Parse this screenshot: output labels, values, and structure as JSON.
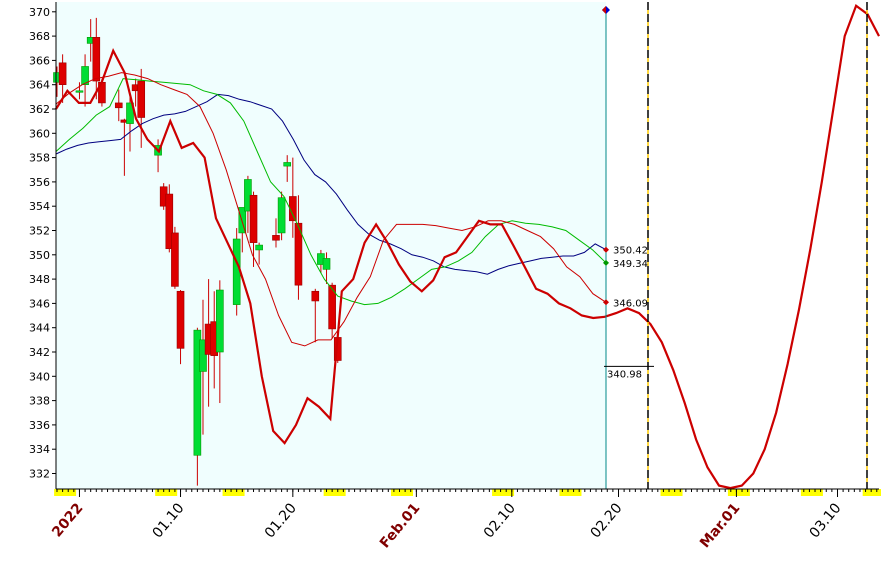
{
  "chart_data": {
    "type": "candlestick",
    "ylim": [
      331,
      371
    ],
    "y_ticks": [
      332,
      334,
      336,
      338,
      340,
      342,
      344,
      346,
      348,
      350,
      352,
      354,
      356,
      358,
      360,
      362,
      364,
      366,
      368,
      370
    ],
    "x_labels": [
      {
        "text": "2022",
        "color": "#800000",
        "bold": true
      },
      {
        "text": "01.10",
        "color": "#000000",
        "bold": false
      },
      {
        "text": "01.20",
        "color": "#000000",
        "bold": false
      },
      {
        "text": "Feb.01",
        "color": "#800000",
        "bold": true
      },
      {
        "text": "02.10",
        "color": "#000000",
        "bold": false
      },
      {
        "text": "02.20",
        "color": "#000000",
        "bold": false
      },
      {
        "text": "Mar.01",
        "color": "#800000",
        "bold": true
      },
      {
        "text": "03.10",
        "color": "#000000",
        "bold": false
      }
    ],
    "candles": [
      {
        "o": 364.2,
        "h": 365.5,
        "l": 363.0,
        "c": 365.0
      },
      {
        "o": 365.8,
        "h": 366.5,
        "l": 362.5,
        "c": 364.0
      },
      {
        "o": 363.5,
        "h": 364.2,
        "l": 362.8,
        "c": 363.5
      },
      {
        "o": 364.0,
        "h": 366.5,
        "l": 362.2,
        "c": 365.5
      },
      {
        "o": 367.4,
        "h": 369.4,
        "l": 365.9,
        "c": 367.9
      },
      {
        "o": 367.9,
        "h": 369.5,
        "l": 362.8,
        "c": 364.3
      },
      {
        "o": 364.2,
        "h": 364.5,
        "l": 362.2,
        "c": 362.5
      },
      {
        "o": 362.5,
        "h": 363.6,
        "l": 361.0,
        "c": 362.1
      },
      {
        "o": 361.1,
        "h": 361.2,
        "l": 356.5,
        "c": 360.9
      },
      {
        "o": 360.8,
        "h": 363.0,
        "l": 358.5,
        "c": 362.5
      },
      {
        "o": 364.0,
        "h": 364.5,
        "l": 362.2,
        "c": 363.5
      },
      {
        "o": 364.3,
        "h": 365.3,
        "l": 358.8,
        "c": 361.3
      },
      {
        "o": 358.2,
        "h": 359.5,
        "l": 356.8,
        "c": 359.0
      },
      {
        "o": 355.6,
        "h": 355.9,
        "l": 353.7,
        "c": 354.0
      },
      {
        "o": 355.0,
        "h": 355.8,
        "l": 350.2,
        "c": 350.5
      },
      {
        "o": 351.8,
        "h": 352.3,
        "l": 347.2,
        "c": 347.4
      },
      {
        "o": 347.0,
        "h": 347.1,
        "l": 341.0,
        "c": 342.3
      },
      {
        "o": 333.5,
        "h": 344.0,
        "l": 331.0,
        "c": 343.8
      },
      {
        "o": 340.4,
        "h": 346.3,
        "l": 335.2,
        "c": 343.0
      },
      {
        "o": 344.3,
        "h": 348.0,
        "l": 337.5,
        "c": 341.8
      },
      {
        "o": 344.5,
        "h": 347.0,
        "l": 339.0,
        "c": 341.7
      },
      {
        "o": 342.0,
        "h": 347.9,
        "l": 337.8,
        "c": 347.1
      },
      {
        "o": 345.9,
        "h": 352.2,
        "l": 345.0,
        "c": 351.3
      },
      {
        "o": 351.8,
        "h": 353.8,
        "l": 350.2,
        "c": 353.9
      },
      {
        "o": 353.6,
        "h": 356.5,
        "l": 351.8,
        "c": 356.2
      },
      {
        "o": 354.9,
        "h": 355.2,
        "l": 349.0,
        "c": 351.0
      },
      {
        "o": 350.4,
        "h": 351.0,
        "l": 349.2,
        "c": 350.8
      },
      {
        "o": 351.6,
        "h": 353.0,
        "l": 350.6,
        "c": 351.2
      },
      {
        "o": 351.8,
        "h": 355.2,
        "l": 351.2,
        "c": 354.7
      },
      {
        "o": 357.3,
        "h": 358.2,
        "l": 356.0,
        "c": 357.6
      },
      {
        "o": 354.8,
        "h": 358.0,
        "l": 351.4,
        "c": 352.8
      },
      {
        "o": 352.6,
        "h": 354.9,
        "l": 346.3,
        "c": 347.5
      },
      {
        "o": 347.0,
        "h": 347.2,
        "l": 342.8,
        "c": 346.2
      },
      {
        "o": 349.2,
        "h": 350.4,
        "l": 348.5,
        "c": 350.1
      },
      {
        "o": 348.8,
        "h": 350.2,
        "l": 347.6,
        "c": 349.7
      },
      {
        "o": 347.5,
        "h": 347.7,
        "l": 343.1,
        "c": 343.9
      },
      {
        "o": 343.2,
        "h": 343.3,
        "l": 341.1,
        "c": 341.3
      }
    ],
    "series": [
      {
        "color": "#000080",
        "values": [
          358.3,
          358.7,
          359.0,
          359.2,
          359.3,
          359.4,
          359.5,
          360.2,
          360.8,
          361.2,
          361.5,
          361.6,
          361.8,
          362.2,
          362.6,
          363.2,
          363.1,
          362.8,
          362.6,
          362.3,
          362.0,
          361.0,
          359.5,
          357.8,
          356.6,
          356.0,
          355.0,
          353.7,
          352.5,
          351.7,
          351.2,
          350.9,
          350.5,
          350.0,
          349.8,
          349.5,
          349.0,
          348.8,
          348.7,
          348.6,
          348.4,
          348.8,
          349.1,
          349.3,
          349.5,
          349.7,
          349.8,
          349.9,
          349.9,
          350.2,
          350.9,
          350.42
        ]
      },
      {
        "color": "#00bb00",
        "values": [
          358.5,
          359.5,
          360.4,
          361.5,
          362.2,
          364.5,
          364.4,
          364.3,
          364.2,
          364.1,
          364.0,
          363.5,
          363.2,
          362.5,
          361.0,
          358.5,
          356.0,
          354.8,
          352.5,
          350.0,
          348.0,
          346.6,
          346.2,
          345.9,
          346.0,
          346.5,
          347.2,
          348.0,
          348.8,
          349.0,
          349.5,
          350.2,
          351.5,
          352.5,
          352.8,
          352.6,
          352.5,
          352.3,
          352.0,
          351.2,
          350.4,
          349.34
        ]
      },
      {
        "color": "#cc0000",
        "values": [
          362.4,
          363.3,
          364.0,
          364.5,
          364.7,
          365.0,
          364.8,
          364.5,
          364.0,
          363.6,
          363.2,
          362.2,
          360.0,
          357.0,
          353.5,
          350.0,
          348.0,
          345.0,
          342.8,
          342.5,
          343.0,
          343.0,
          344.5,
          346.5,
          348.2,
          351.2,
          352.5,
          352.5,
          352.5,
          352.4,
          352.2,
          352.0,
          352.3,
          352.8,
          352.8,
          352.5,
          352.0,
          351.5,
          350.5,
          349.0,
          348.2,
          346.8,
          346.09
        ]
      }
    ],
    "forecast": [
      362.0,
      363.5,
      362.5,
      362.5,
      364.2,
      366.8,
      365.0,
      361.2,
      359.5,
      358.5,
      361.0,
      358.8,
      359.2,
      358.0,
      353.0,
      351.0,
      349.0,
      346.0,
      340.0,
      335.5,
      334.5,
      336.0,
      338.2,
      337.5,
      336.5,
      347.0,
      348.0,
      351.0,
      352.5,
      351.0,
      349.2,
      347.8,
      347.0,
      347.9,
      349.8,
      350.2,
      351.5,
      352.8,
      352.5,
      352.5,
      350.8,
      349.0,
      347.2,
      346.8,
      346.0,
      345.6,
      345.0,
      344.8,
      344.9,
      345.2,
      345.6,
      345.2,
      344.3,
      342.8,
      340.5,
      337.8,
      334.8,
      332.5,
      331.0,
      330.8,
      331.0,
      332.0,
      334.0,
      337.0,
      341.0,
      345.5,
      350.5,
      356.0,
      362.0,
      368.0,
      370.5,
      369.8,
      368.0
    ],
    "annotations": [
      {
        "text": "350.42",
        "value": 350.42,
        "marker_color": "#cc0000"
      },
      {
        "text": "349.34",
        "value": 349.34,
        "marker_color": "#009900"
      },
      {
        "text": "346.09",
        "value": 346.09,
        "marker_color": "#cc0000"
      },
      {
        "text": "340.98",
        "value": 340.98,
        "marker_color": ""
      }
    ],
    "top_marker_colors": [
      "#cc0000",
      "#0000cc"
    ],
    "colors": {
      "up": "#00dd33",
      "down": "#dd0000",
      "background": "#f0fefe",
      "cursor": "#008888",
      "forecast": "#cc0000",
      "weekend_marker": "#ffff00"
    },
    "grid": false
  }
}
